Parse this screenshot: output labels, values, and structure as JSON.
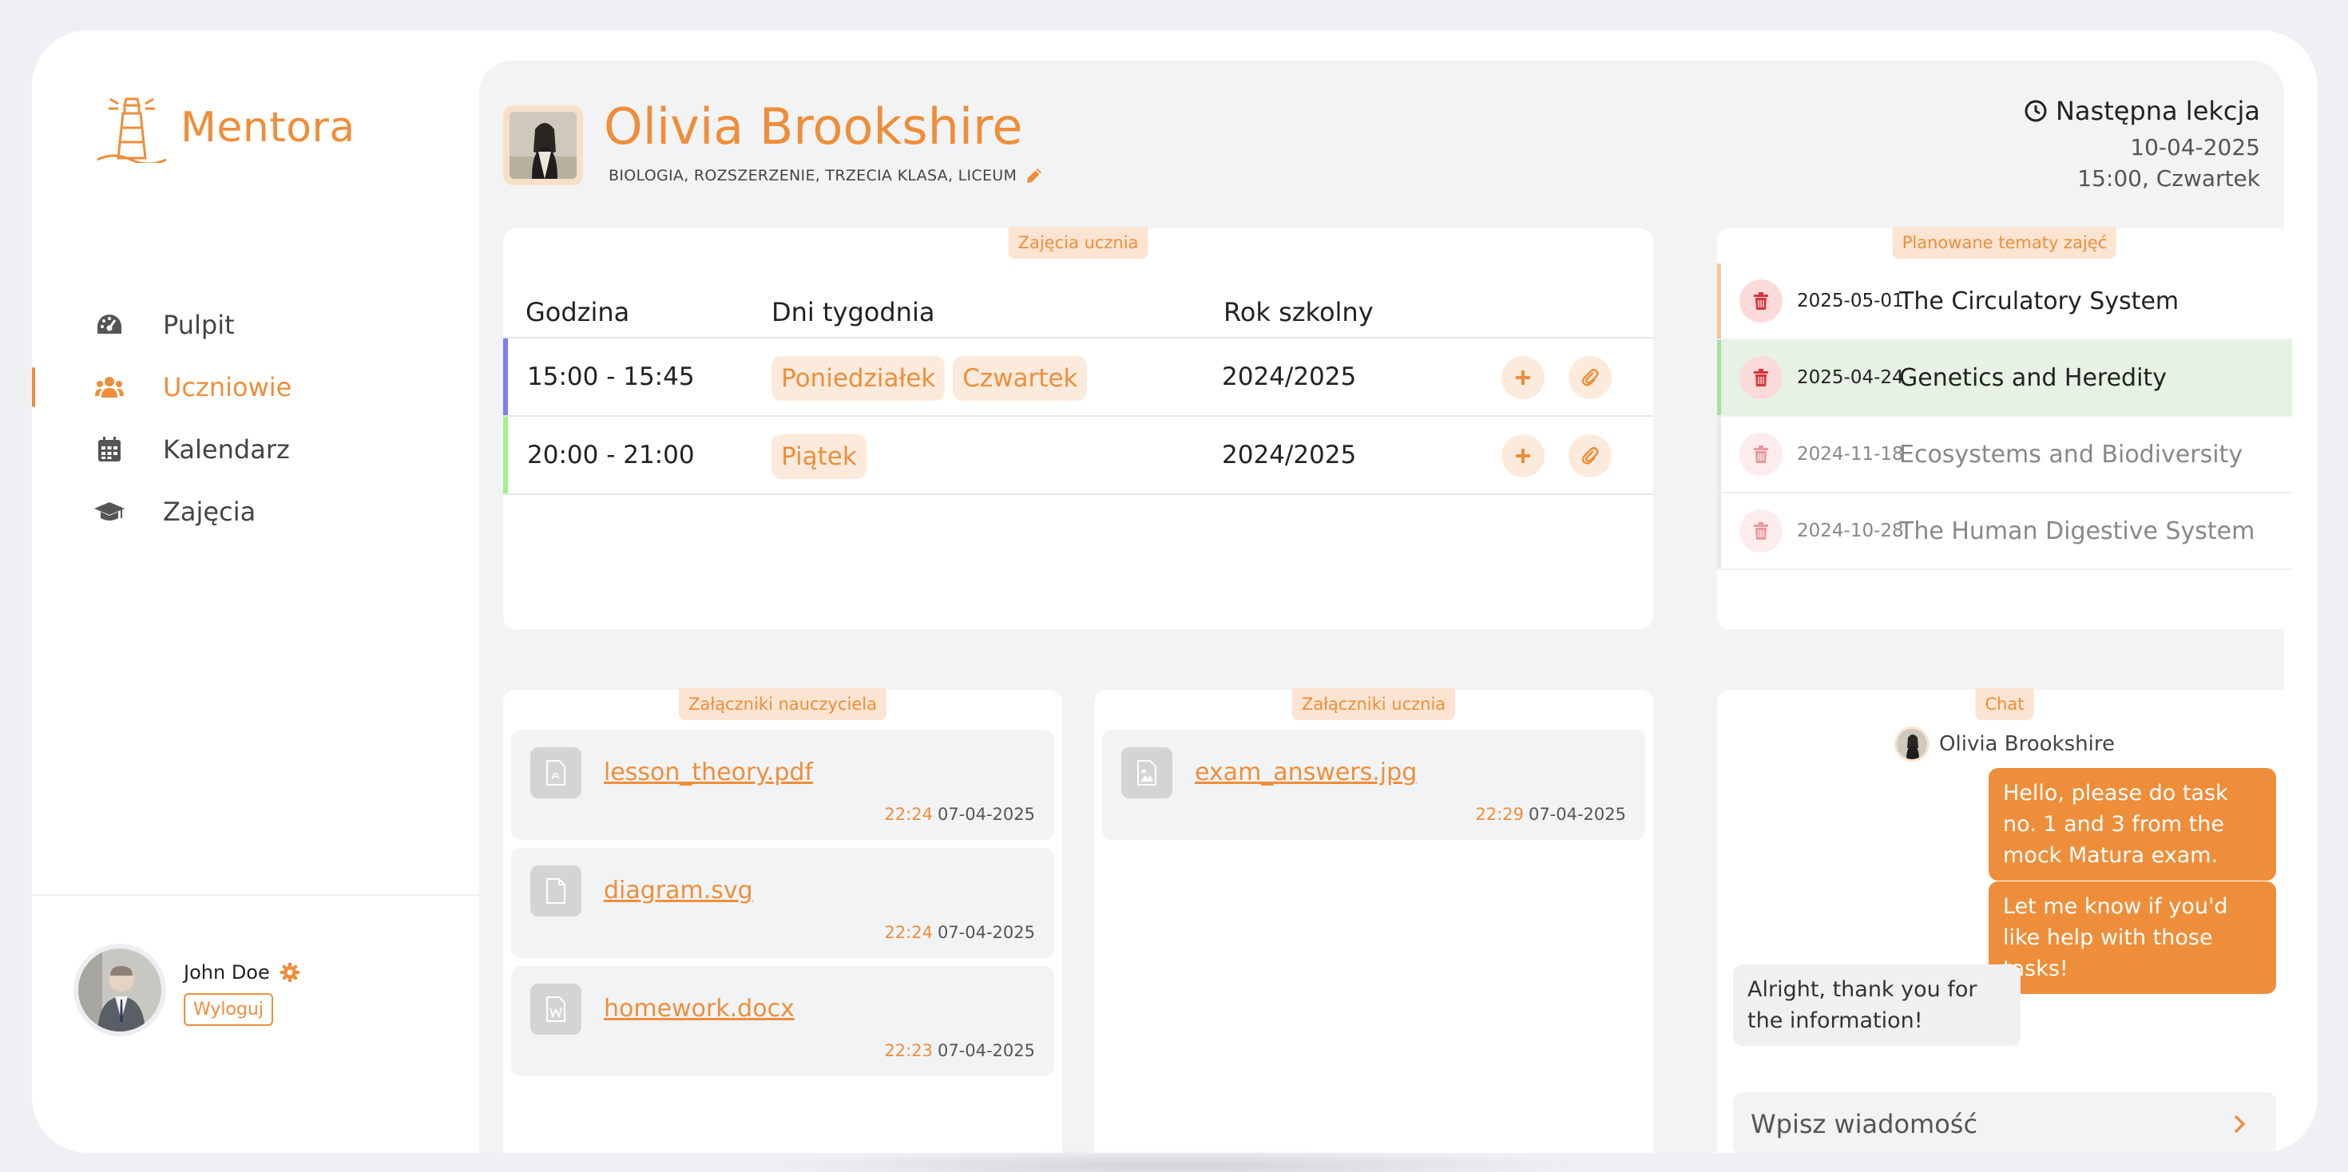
{
  "brand": {
    "name": "Mentora",
    "accent": "#ee8e3a"
  },
  "sidebar": {
    "items": [
      {
        "label": "Pulpit",
        "icon": "dashboard-icon",
        "active": false
      },
      {
        "label": "Uczniowie",
        "icon": "users-icon",
        "active": true
      },
      {
        "label": "Kalendarz",
        "icon": "calendar-icon",
        "active": false
      },
      {
        "label": "Zajęcia",
        "icon": "graduation-cap-icon",
        "active": false
      }
    ],
    "user": {
      "name": "John Doe",
      "logout_label": "Wyloguj"
    }
  },
  "student": {
    "name": "Olivia Brookshire",
    "subtitle": "BIOLOGIA, ROZSZERZENIE, TRZECIA KLASA, LICEUM"
  },
  "next_lesson": {
    "title": "Następna lekcja",
    "date": "10-04-2025",
    "time": "15:00, Czwartek"
  },
  "classes": {
    "tag": "Zajęcia ucznia",
    "headers": [
      "Godzina",
      "Dni tygodnia",
      "Rok szkolny"
    ],
    "rows": [
      {
        "time": "15:00 - 15:45",
        "days": [
          "Poniedziałek",
          "Czwartek"
        ],
        "year": "2024/2025",
        "color": "#7b7ff0"
      },
      {
        "time": "20:00 - 21:00",
        "days": [
          "Piątek"
        ],
        "year": "2024/2025",
        "color": "#a4ef8c"
      }
    ]
  },
  "topics": {
    "tag": "Planowane tematy zajęć",
    "items": [
      {
        "date": "2025-05-01",
        "name": "The Circulatory System",
        "state": "upcoming"
      },
      {
        "date": "2025-04-24",
        "name": "Genetics and Heredity",
        "state": "current"
      },
      {
        "date": "2024-11-18",
        "name": "Ecosystems and Biodiversity",
        "state": "past"
      },
      {
        "date": "2024-10-28",
        "name": "The Human Digestive System",
        "state": "past"
      }
    ]
  },
  "teacher_attachments": {
    "tag": "Załączniki nauczyciela",
    "files": [
      {
        "name": "lesson_theory.pdf",
        "time": "22:24",
        "date": "07-04-2025",
        "icon": "pdf-file-icon"
      },
      {
        "name": "diagram.svg",
        "time": "22:24",
        "date": "07-04-2025",
        "icon": "file-icon"
      },
      {
        "name": "homework.docx",
        "time": "22:23",
        "date": "07-04-2025",
        "icon": "word-file-icon"
      }
    ]
  },
  "student_attachments": {
    "tag": "Załączniki ucznia",
    "files": [
      {
        "name": "exam_answers.jpg",
        "time": "22:29",
        "date": "07-04-2025",
        "icon": "image-file-icon"
      }
    ]
  },
  "chat": {
    "tag": "Chat",
    "peer": "Olivia Brookshire",
    "messages": [
      {
        "from": "me",
        "text": "Hello, please do task no. 1 and 3 from the mock Matura exam."
      },
      {
        "from": "me",
        "text": "Let me know if you'd like help with those tasks!"
      },
      {
        "from": "them",
        "text": "Alright, thank you for the information!"
      }
    ],
    "input_placeholder": "Wpisz wiadomość"
  }
}
